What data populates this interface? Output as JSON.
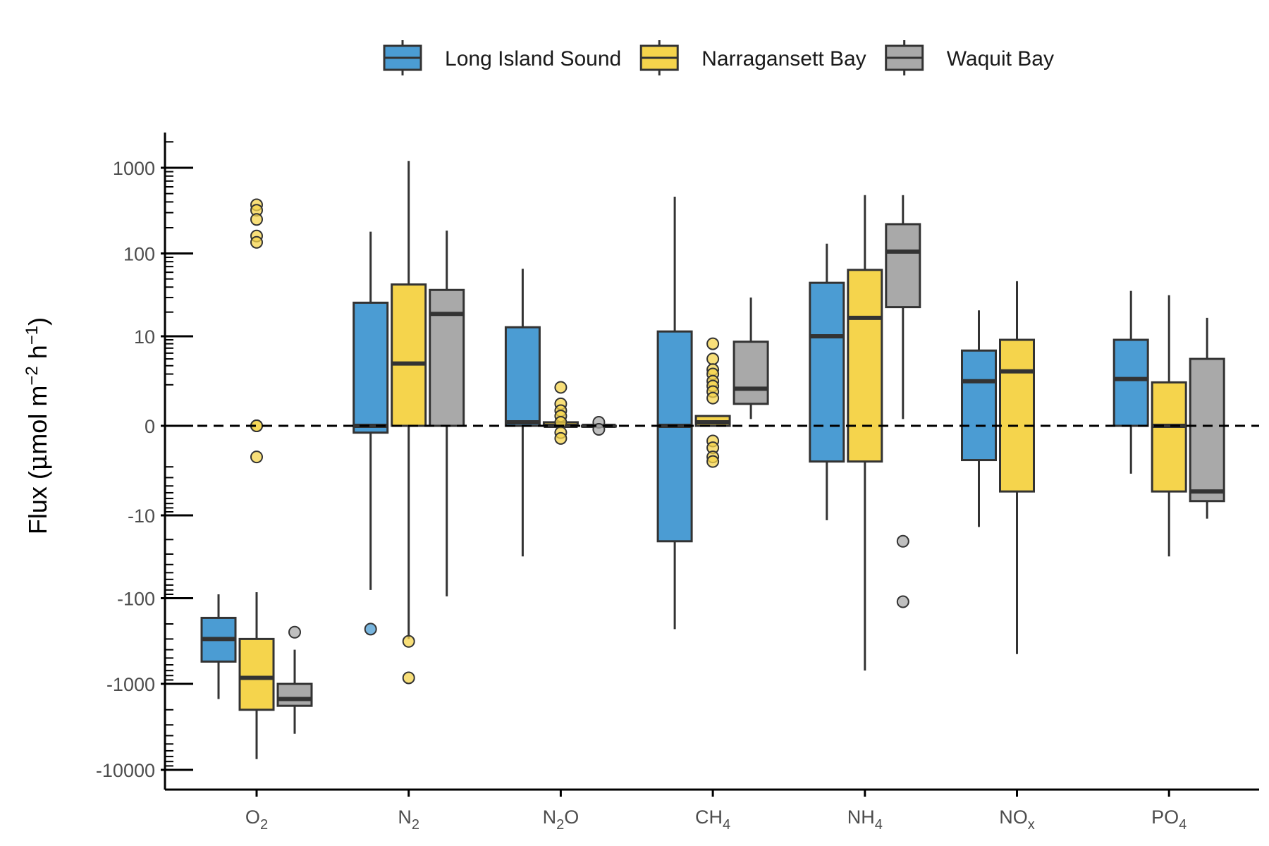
{
  "chart_data": {
    "type": "box",
    "y_scale": "pseudo-log (symmetric)",
    "ylabel": {
      "pre": "Flux (",
      "mu": "μ",
      "mid": "mol m",
      "exp1": "−2",
      "mid2": " h",
      "exp2": "−1",
      "post": ")"
    },
    "yticks": [
      {
        "value": 1000,
        "label": "1000"
      },
      {
        "value": 100,
        "label": "100"
      },
      {
        "value": 10,
        "label": "10"
      },
      {
        "value": 0,
        "label": "0"
      },
      {
        "value": -10,
        "label": "-10"
      },
      {
        "value": -100,
        "label": "-100"
      },
      {
        "value": -1000,
        "label": "-1000"
      },
      {
        "value": -10000,
        "label": "-10000"
      }
    ],
    "ylim": [
      -14000,
      2300
    ],
    "reference_line": {
      "value": 0,
      "style": "dashed"
    },
    "legend": {
      "position": "top"
    },
    "categories": [
      {
        "main": "O",
        "sub": "2"
      },
      {
        "main": "N",
        "sub": "2"
      },
      {
        "main": "N",
        "sub": "2",
        "suffix": "O"
      },
      {
        "main": "CH",
        "sub": "4"
      },
      {
        "main": "NH",
        "sub": "4"
      },
      {
        "main": "NO",
        "sub": "x"
      },
      {
        "main": "PO",
        "sub": "4"
      }
    ],
    "series": [
      {
        "name": "Long Island Sound",
        "color": "#4b9cd3",
        "boxes": [
          {
            "lo": -1500,
            "q1": -550,
            "med": -300,
            "q3": -170,
            "hi": -90,
            "outliers": []
          },
          {
            "lo": -80,
            "q1": -0.2,
            "med": 0,
            "q3": 26,
            "hi": 180,
            "outliers": [
              -230
            ]
          },
          {
            "lo": -32,
            "q1": 0,
            "med": 0.1,
            "q3": 13,
            "hi": 66,
            "outliers": []
          },
          {
            "lo": -230,
            "q1": -21,
            "med": 0,
            "q3": 11.5,
            "hi": 460,
            "outliers": []
          },
          {
            "lo": -11.5,
            "q1": -1.6,
            "med": 10,
            "q3": 45,
            "hi": 130,
            "outliers": []
          },
          {
            "lo": -14,
            "q1": -1.5,
            "med": 2.3,
            "q3": 6.5,
            "hi": 21,
            "outliers": []
          },
          {
            "lo": -2.6,
            "q1": 0,
            "med": 2.5,
            "q3": 9,
            "hi": 36,
            "outliers": []
          }
        ]
      },
      {
        "name": "Narragansett Bay",
        "color": "#f5d44c",
        "boxes": [
          {
            "lo": -7500,
            "q1": -2000,
            "med": -850,
            "q3": -300,
            "hi": -85,
            "outliers": [
              370,
              320,
              250,
              160,
              135,
              0,
              0,
              -1.3
            ]
          },
          {
            "lo": -300,
            "q1": 0,
            "med": 4.3,
            "q3": 43,
            "hi": 1200,
            "outliers": [
              -320,
              -850
            ]
          },
          {
            "lo": 0,
            "q1": 0,
            "med": 0,
            "q3": 0.1,
            "hi": 0.1,
            "outliers": [
              1.8,
              0.8,
              0.5,
              0.3,
              0.1,
              -0.2,
              -0.4
            ]
          },
          {
            "lo": 0,
            "q1": 0,
            "med": 0.1,
            "q3": 0.3,
            "hi": 0.3,
            "outliers": [
              8,
              5,
              3.5,
              3,
              2.3,
              1.9,
              1.5,
              1.1,
              -0.5,
              -0.8,
              -1.3,
              -1.6
            ]
          },
          {
            "lo": -700,
            "q1": -1.6,
            "med": 17,
            "q3": 64,
            "hi": 480,
            "outliers": []
          },
          {
            "lo": -450,
            "q1": -4.8,
            "med": 3.3,
            "q3": 9,
            "hi": 47,
            "outliers": []
          },
          {
            "lo": -32,
            "q1": -4.8,
            "med": 0,
            "q3": 2.2,
            "hi": 32,
            "outliers": []
          }
        ]
      },
      {
        "name": "Waquit Bay",
        "color": "#a9a9a9",
        "boxes": [
          {
            "lo": -3800,
            "q1": -1800,
            "med": -1500,
            "q3": -1000,
            "hi": -400,
            "outliers": [
              -250
            ]
          },
          {
            "lo": -95,
            "q1": 0,
            "med": 19,
            "q3": 37,
            "hi": 185,
            "outliers": []
          },
          {
            "lo": 0,
            "q1": 0,
            "med": 0,
            "q3": 0,
            "hi": 0,
            "outliers": [
              0.1,
              -0.1
            ]
          },
          {
            "lo": 0.2,
            "q1": 0.8,
            "med": 1.7,
            "q3": 8.5,
            "hi": 30,
            "outliers": []
          },
          {
            "lo": 0.2,
            "q1": 23,
            "med": 105,
            "q3": 220,
            "hi": 480,
            "outliers": [
              -21,
              -110
            ]
          },
          null,
          {
            "lo": -11,
            "q1": -6.5,
            "med": -4.8,
            "q3": 5,
            "hi": 17,
            "outliers": []
          }
        ]
      }
    ]
  }
}
